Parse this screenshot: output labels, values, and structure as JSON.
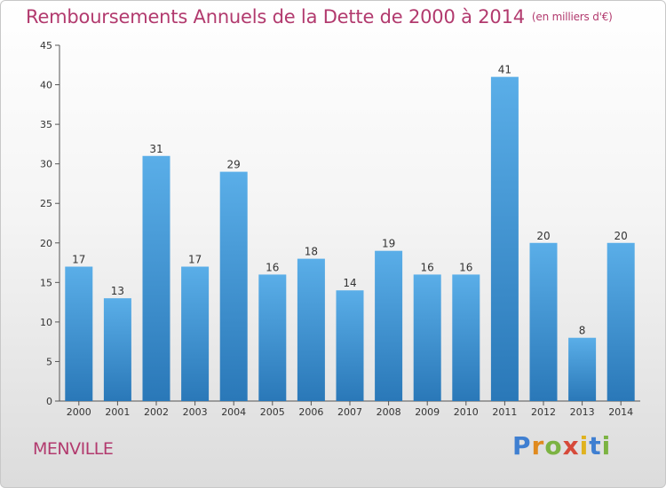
{
  "header": {
    "title": "Remboursements Annuels de la Dette de 2000 à 2014",
    "subtitle": "(en milliers d'€)"
  },
  "footer": {
    "city": "MENVILLE",
    "logo": [
      "P",
      "r",
      "o",
      "x",
      "i",
      "t",
      "i"
    ]
  },
  "chart_data": {
    "type": "bar",
    "title": "Remboursements Annuels de la Dette de 2000 à 2014",
    "subtitle": "(en milliers d'€)",
    "categories": [
      "2000",
      "2001",
      "2002",
      "2003",
      "2004",
      "2005",
      "2006",
      "2007",
      "2008",
      "2009",
      "2010",
      "2011",
      "2012",
      "2013",
      "2014"
    ],
    "values": [
      17,
      13,
      31,
      17,
      29,
      16,
      18,
      14,
      19,
      16,
      16,
      41,
      20,
      8,
      20
    ],
    "yticks": [
      0,
      5,
      10,
      15,
      20,
      25,
      30,
      35,
      40,
      45
    ],
    "ylim": [
      0,
      45
    ],
    "grid": false,
    "legend": "none",
    "bar_color_top": "#5aaee8",
    "bar_color_bottom": "#2a78b8"
  }
}
